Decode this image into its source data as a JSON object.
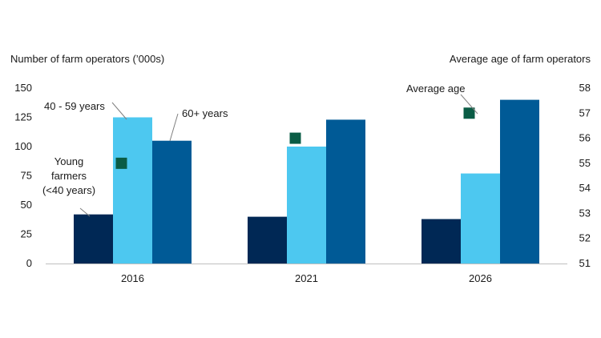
{
  "chart_data": {
    "type": "bar",
    "categories": [
      "2016",
      "2021",
      "2026"
    ],
    "series": [
      {
        "name": "Young farmers (<40 years)",
        "values": [
          42,
          40,
          38
        ],
        "color": "#002855"
      },
      {
        "name": "40 - 59 years",
        "values": [
          125,
          100,
          77
        ],
        "color": "#4DC8F0"
      },
      {
        "name": "60+ years",
        "values": [
          105,
          123,
          140
        ],
        "color": "#005A96"
      }
    ],
    "secondary_series": {
      "name": "Average age",
      "type": "scatter",
      "marker": "square",
      "color": "#0A5C45",
      "values": [
        55.0,
        56.0,
        57.0
      ]
    },
    "ylabel": "Number of farm operators (’000s)",
    "y2label": "Average age of farm operators",
    "ylim": [
      0,
      150
    ],
    "yticks": [
      0,
      25,
      50,
      75,
      100,
      125,
      150
    ],
    "y2lim": [
      51,
      58
    ],
    "y2ticks": [
      51,
      52,
      53,
      54,
      55,
      56,
      57,
      58
    ],
    "grid": false,
    "annotations": [
      {
        "text_lines": [
          "Young",
          "farmers",
          "(<40 years)"
        ],
        "target": "Young farmers (<40 years)"
      },
      {
        "text_lines": [
          "40 - 59 years"
        ],
        "target": "40 - 59 years"
      },
      {
        "text_lines": [
          "60+ years"
        ],
        "target": "60+ years"
      },
      {
        "text_lines": [
          "Average age"
        ],
        "target": "Average age"
      }
    ]
  }
}
